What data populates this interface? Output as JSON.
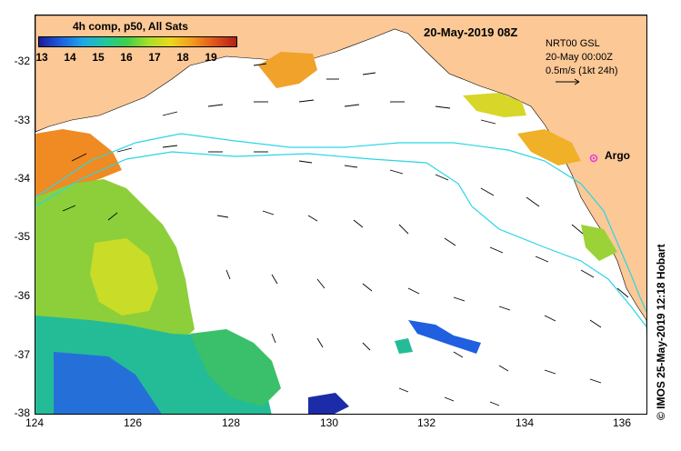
{
  "colorbar": {
    "title": "4h comp, p50, All Sats",
    "ticks": [
      "13",
      "14",
      "15",
      "16",
      "17",
      "18",
      "19"
    ]
  },
  "date_label": "20-May-2019 08Z",
  "legend": {
    "line1": "NRT00 GSL",
    "line2": "20-May 00:00Z",
    "line3": "0.5m/s (1kt 24h)"
  },
  "argo_label": "Argo",
  "credit": "© IMOS 25-May-2019 12:18 Hobart",
  "axes": {
    "y_ticks": [
      "-32",
      "-33",
      "-34",
      "-35",
      "-36",
      "-37",
      "-38"
    ],
    "x_ticks": [
      "124",
      "126",
      "128",
      "130",
      "132",
      "134",
      "136"
    ]
  },
  "colors": {
    "land": "#fcc896",
    "contour": "#2ad6e6",
    "argo": "#e83ce0"
  }
}
